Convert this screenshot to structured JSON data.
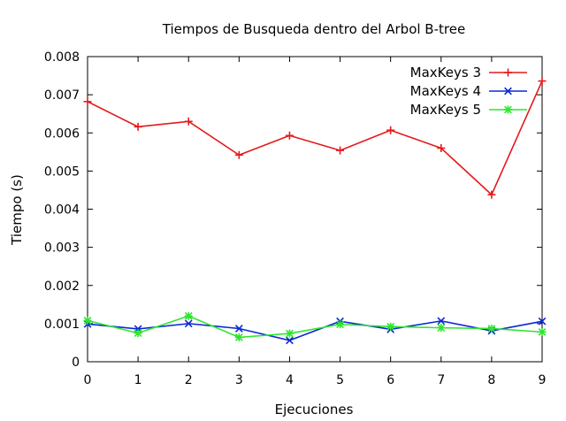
{
  "chart_data": {
    "type": "line",
    "title": "Tiempos de Busqueda dentro del Arbol B-tree",
    "xlabel": "Ejecuciones",
    "ylabel": "Tiempo (s)",
    "x": [
      0,
      1,
      2,
      3,
      4,
      5,
      6,
      7,
      8,
      9
    ],
    "xlim": [
      0,
      9
    ],
    "ylim": [
      0,
      0.008
    ],
    "xticks": [
      "0",
      "1",
      "2",
      "3",
      "4",
      "5",
      "6",
      "7",
      "8",
      "9"
    ],
    "yticks": [
      "0",
      "0.001",
      "0.002",
      "0.003",
      "0.004",
      "0.005",
      "0.006",
      "0.007",
      "0.008"
    ],
    "ytick_values": [
      0,
      0.001,
      0.002,
      0.003,
      0.004,
      0.005,
      0.006,
      0.007,
      0.008
    ],
    "grid": false,
    "legend_position": "top-right",
    "series": [
      {
        "name": "MaxKeys 3",
        "color": "#e41a1c",
        "marker": "plus",
        "values": [
          0.00682,
          0.00616,
          0.0063,
          0.00542,
          0.00593,
          0.00554,
          0.00607,
          0.0056,
          0.00438,
          0.00736
        ]
      },
      {
        "name": "MaxKeys 4",
        "color": "#0a28d6",
        "marker": "cross",
        "values": [
          0.00099,
          0.00086,
          0.001,
          0.00087,
          0.00056,
          0.00106,
          0.00085,
          0.00107,
          0.00081,
          0.00106
        ]
      },
      {
        "name": "MaxKeys 5",
        "color": "#2ee62e",
        "marker": "star",
        "values": [
          0.00108,
          0.00075,
          0.0012,
          0.00064,
          0.00074,
          0.00098,
          0.00092,
          0.00089,
          0.00087,
          0.00078
        ]
      }
    ]
  }
}
